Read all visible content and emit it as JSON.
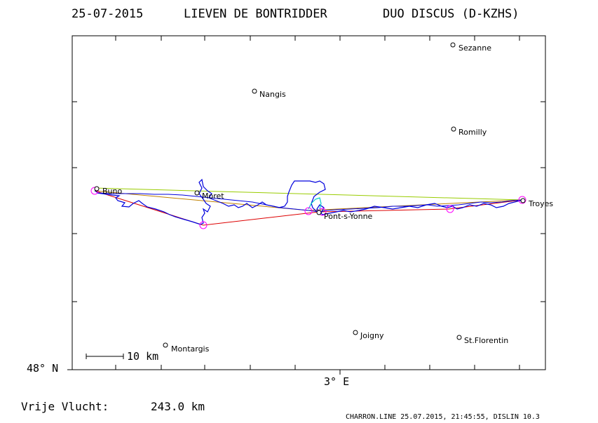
{
  "header": {
    "date": "25-07-2015",
    "pilot": "LIEVEN DE BONTRIDDER",
    "glider": "DUO DISCUS (D-KZHS)"
  },
  "axes": {
    "lat_label": "48° N",
    "lon_label": "3° E"
  },
  "scale_bar": {
    "label": "10 km"
  },
  "towns": [
    {
      "name": "Sezanne"
    },
    {
      "name": "Nangis"
    },
    {
      "name": "Romilly"
    },
    {
      "name": "Buno"
    },
    {
      "name": "Moret"
    },
    {
      "name": "Troyes"
    },
    {
      "name": "Pont-s-Yonne"
    },
    {
      "name": "Joigny"
    },
    {
      "name": "St.Florentin"
    },
    {
      "name": "Montargis"
    }
  ],
  "distance": {
    "label": "Vrije Vlucht:",
    "value": "243.0 km"
  },
  "footer": "CHARRON.LINE 25.07.2015, 21:45:55, DISLIN 10.3",
  "colors": {
    "track": "#0000dd",
    "declared_task": "#dd0000",
    "optimized_route": "#99cc00",
    "alt_route": "#c08000",
    "turnpoint_circle": "#ff00ff",
    "thermal_segment": "#00cccc"
  }
}
